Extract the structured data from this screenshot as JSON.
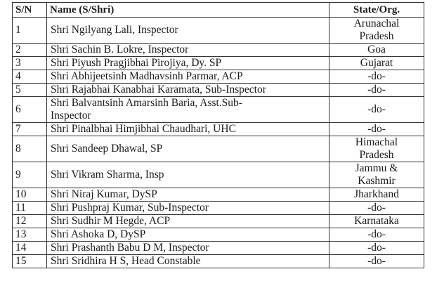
{
  "header": {
    "sn": "S/N",
    "name": "Name (S/Shri)",
    "state": "State/Org."
  },
  "rows": [
    {
      "sn": "1",
      "name": "Shri Ngilyang Lali, Inspector",
      "state": "Arunachal Pradesh"
    },
    {
      "sn": "2",
      "name": "Shri Sachin B. Lokre, Inspector",
      "state": "Goa"
    },
    {
      "sn": "3",
      "name": "Shri Piyush Pragjibhai Pirojiya, Dy. SP",
      "state": "Gujarat"
    },
    {
      "sn": "4",
      "name": "Shri Abhijeetsinh Madhavsinh Parmar, ACP",
      "state": "-do-"
    },
    {
      "sn": "5",
      "name": "Shri Rajabhai Kanabhai Karamata, Sub-Inspector",
      "state": "-do-"
    },
    {
      "sn": "6",
      "name": "Shri Balvantsinh Amarsinh Baria, Asst.Sub-Inspector",
      "state": "-do-"
    },
    {
      "sn": "7",
      "name": "Shri Pinalbhai Himjibhai Chaudhari, UHC",
      "state": "-do-"
    },
    {
      "sn": "8",
      "name": "Shri Sandeep Dhawal, SP",
      "state": "Himachal Pradesh"
    },
    {
      "sn": "9",
      "name": "Shri Vikram Sharma, Insp",
      "state": "Jammu & Kashmir"
    },
    {
      "sn": "10",
      "name": "Shri Niraj Kumar, DySP",
      "state": "Jharkhand"
    },
    {
      "sn": "11",
      "name": "Shri Pushpraj Kumar, Sub-Inspector",
      "state": "-do-"
    },
    {
      "sn": "12",
      "name": "Shri Sudhir M Hegde, ACP",
      "state": "Karnataka"
    },
    {
      "sn": "13",
      "name": "Shri Ashoka D, DySP",
      "state": "-do-"
    },
    {
      "sn": "14",
      "name": "Shri Prashanth Babu D M, Inspector",
      "state": "-do-"
    },
    {
      "sn": "15",
      "name": "Shri Sridhira  H S, Head Constable",
      "state": "-do-"
    }
  ]
}
